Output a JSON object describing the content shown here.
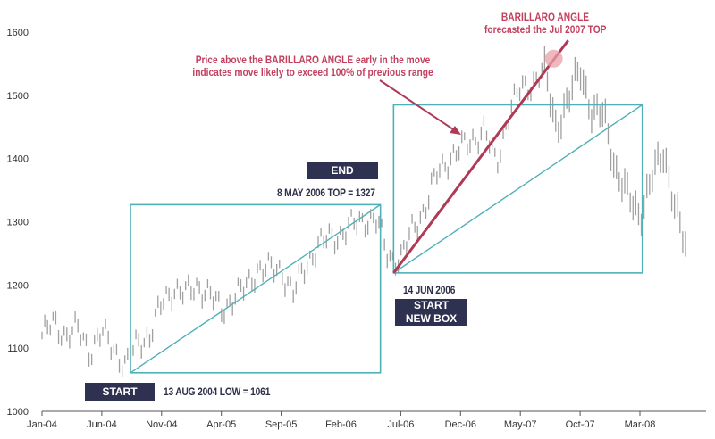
{
  "chart_data": {
    "type": "bar",
    "subtype": "ohlc-weekly",
    "title": "",
    "xlabel": "",
    "ylabel": "",
    "ylim": [
      1000,
      1600
    ],
    "yticks": [
      1000,
      1100,
      1200,
      1300,
      1400,
      1500,
      1600
    ],
    "xticks": [
      "Jan-04",
      "Jun-04",
      "Nov-04",
      "Apr-05",
      "Sep-05",
      "Feb-06",
      "Jul-06",
      "Dec-06",
      "May-07",
      "Oct-07",
      "Mar-08"
    ],
    "xtick_months": [
      0,
      5,
      10,
      15,
      20,
      25,
      30,
      35,
      40,
      45,
      50
    ],
    "x_units": "months since Jan 2004",
    "monthly_mid_price": [
      1120,
      1140,
      1120,
      1130,
      1095,
      1125,
      1100,
      1070,
      1110,
      1120,
      1170,
      1195,
      1185,
      1200,
      1185,
      1160,
      1180,
      1195,
      1225,
      1225,
      1225,
      1185,
      1230,
      1260,
      1275,
      1280,
      1295,
      1305,
      1300,
      1245,
      1240,
      1290,
      1320,
      1375,
      1400,
      1415,
      1430,
      1445,
      1390,
      1470,
      1510,
      1520,
      1540,
      1450,
      1490,
      1545,
      1470,
      1470,
      1380,
      1340,
      1310,
      1370,
      1410,
      1320,
      1240
    ],
    "boxes": [
      {
        "name": "box-1",
        "start": {
          "month": 7.4,
          "price": 1061
        },
        "end": {
          "month": 28.3,
          "price": 1327
        }
      },
      {
        "name": "box-2",
        "start": {
          "month": 29.4,
          "price": 1219
        },
        "end": {
          "month": 50.2,
          "price": 1485
        }
      }
    ],
    "angle_line": {
      "start": {
        "month": 29.4,
        "price": 1219
      },
      "end": {
        "month": 44.0,
        "price": 1587
      }
    },
    "top_marker": {
      "month": 42.8,
      "price": 1558
    },
    "colors": {
      "bars": "#a0a0a0",
      "box": "#4fb0b8",
      "angle": "#b03a55",
      "marker": "#e8a0a8",
      "navy": "#2f3150",
      "annotation": "#c2405e"
    }
  },
  "labels": {
    "start": "START",
    "start_note": "13 AUG 2004 LOW = 1061",
    "end": "END",
    "end_note": "8 MAY  2006 TOP = 1327",
    "new_box_date": "14 JUN  2006",
    "new_box_line1": "START",
    "new_box_line2": "NEW BOX",
    "angle_title": "BARILLARO ANGLE",
    "angle_sub": "forecasted the Jul 2007 TOP",
    "price_note_1": "Price above the BARILLARO ANGLE early in the move",
    "price_note_2": "indicates move likely to  exceed 100% of previous range"
  }
}
